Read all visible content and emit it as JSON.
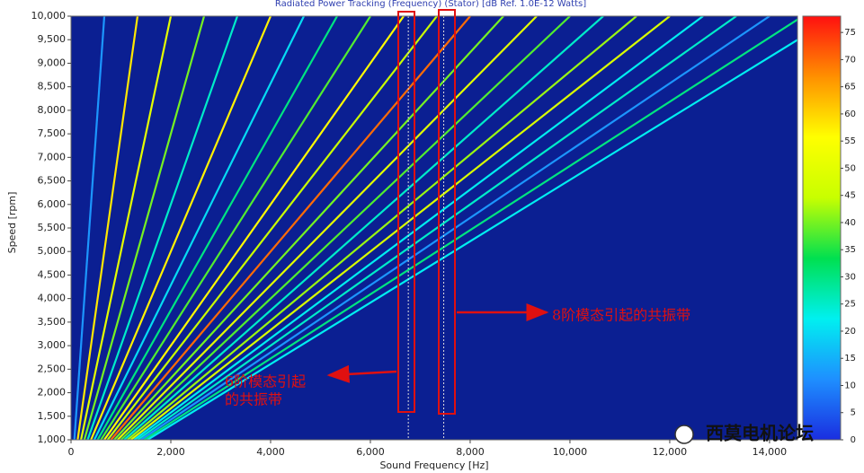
{
  "chart_data": {
    "type": "order-lines",
    "title": "Radiated Power Tracking (Frequency) (Stator) [dB Ref. 1.0E-12 Watts]",
    "x_label": "Sound Frequency [Hz]",
    "y_label": "Speed [rpm]",
    "xlim": [
      0,
      14560
    ],
    "ylim": [
      1000,
      10000
    ],
    "xticks": [
      0,
      {
        "value": 2000,
        "label": "2,000"
      },
      {
        "value": 4000,
        "label": "4,000"
      },
      {
        "value": 6000,
        "label": "6,000"
      },
      {
        "value": 8000,
        "label": "8,000"
      },
      {
        "value": 10000,
        "label": "10,000"
      },
      {
        "value": 12000,
        "label": "12,000"
      },
      {
        "value": 14000,
        "label": "14,000"
      }
    ],
    "yticks": [
      {
        "value": 1000,
        "label": "1,000"
      },
      {
        "value": 1500,
        "label": "1,500"
      },
      {
        "value": 2000,
        "label": "2,000"
      },
      {
        "value": 2500,
        "label": "2,500"
      },
      {
        "value": 3000,
        "label": "3,000"
      },
      {
        "value": 3500,
        "label": "3,500"
      },
      {
        "value": 4000,
        "label": "4,000"
      },
      {
        "value": 4500,
        "label": "4,500"
      },
      {
        "value": 5000,
        "label": "5,000"
      },
      {
        "value": 5500,
        "label": "5,500"
      },
      {
        "value": 6000,
        "label": "6,000"
      },
      {
        "value": 6500,
        "label": "6,500"
      },
      {
        "value": 7000,
        "label": "7,000"
      },
      {
        "value": 7500,
        "label": "7,500"
      },
      {
        "value": 8000,
        "label": "8,000"
      },
      {
        "value": 8500,
        "label": "8,500"
      },
      {
        "value": 9000,
        "label": "9,000"
      },
      {
        "value": 9500,
        "label": "9,500"
      },
      {
        "value": {
          "v": 10000
        },
        "label": "10,000"
      }
    ],
    "background": "#0b1f92",
    "colormap": [
      "#1a2ee0",
      "#1e8fff",
      "#00f0f0",
      "#00e050",
      "#c8ff00",
      "#ffff00",
      "#ff9000",
      "#ff1010"
    ],
    "clim": [
      0,
      78
    ],
    "cticks": [
      0,
      5,
      10,
      15,
      20,
      25,
      30,
      35,
      40,
      45,
      50,
      55,
      60,
      65,
      70,
      75
    ],
    "series": [
      {
        "x": [
          67,
          667
        ],
        "y": [
          1000,
          10000
        ],
        "level": 12
      },
      {
        "x": [
          133,
          1333
        ],
        "y": [
          1000,
          10000
        ],
        "level": 58
      },
      {
        "x": [
          200,
          2000
        ],
        "y": [
          1000,
          10000
        ],
        "level": 50
      },
      {
        "x": [
          267,
          2667
        ],
        "y": [
          1000,
          10000
        ],
        "level": 40
      },
      {
        "x": [
          333,
          3333
        ],
        "y": [
          1000,
          10000
        ],
        "level": 25
      },
      {
        "x": [
          400,
          4000
        ],
        "y": [
          1000,
          10000
        ],
        "level": 57
      },
      {
        "x": [
          467,
          4667
        ],
        "y": [
          1000,
          10000
        ],
        "level": 20
      },
      {
        "x": [
          533,
          5333
        ],
        "y": [
          1000,
          10000
        ],
        "level": 30
      },
      {
        "x": [
          600,
          6000
        ],
        "y": [
          1000,
          10000
        ],
        "level": 38
      },
      {
        "x": [
          667,
          6667
        ],
        "y": [
          1000,
          10000
        ],
        "level": 56
      },
      {
        "x": [
          733,
          7333
        ],
        "y": [
          1000,
          10000
        ],
        "level": 45
      },
      {
        "x": [
          800,
          8000
        ],
        "y": [
          1000,
          10000
        ],
        "level": 70
      },
      {
        "x": [
          867,
          8667
        ],
        "y": [
          1000,
          10000
        ],
        "level": 40
      },
      {
        "x": [
          933,
          9333
        ],
        "y": [
          1000,
          10000
        ],
        "level": 50
      },
      {
        "x": [
          1000,
          10000
        ],
        "y": [
          1000,
          10000
        ],
        "level": 38
      },
      {
        "x": [
          1067,
          10667
        ],
        "y": [
          1000,
          10000
        ],
        "level": 25
      },
      {
        "x": [
          1133,
          11333
        ],
        "y": [
          1000,
          10000
        ],
        "level": 42
      },
      {
        "x": [
          1200,
          12000
        ],
        "y": [
          1000,
          10000
        ],
        "level": 48
      },
      {
        "x": [
          1267,
          12667
        ],
        "y": [
          1000,
          10000
        ],
        "level": 22
      },
      {
        "x": [
          1333,
          13333
        ],
        "y": [
          1000,
          10000
        ],
        "level": 25
      },
      {
        "x": [
          1400,
          14000
        ],
        "y": [
          1000,
          10000
        ],
        "level": 12
      },
      {
        "x": [
          1467,
          14667
        ],
        "y": [
          1000,
          10000
        ],
        "level": 30
      },
      {
        "x": [
          1533,
          15333
        ],
        "y": [
          1000,
          10000
        ],
        "level": 22
      }
    ],
    "ref_lines_x": [
      6760,
      7470
    ],
    "annotations": [
      "8阶模态引起的共振带",
      "6阶模态引起",
      "的共振带"
    ],
    "watermark": "西莫电机论坛"
  }
}
